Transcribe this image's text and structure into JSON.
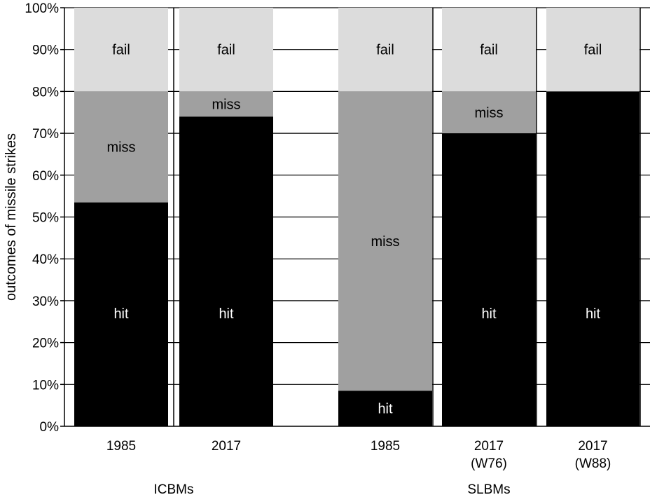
{
  "chart_data": {
    "type": "bar",
    "stacked": true,
    "title": "",
    "ylabel": "outcomes of missile strikes",
    "xlabel": "",
    "ylim": [
      0,
      100
    ],
    "y_ticks": [
      0,
      10,
      20,
      30,
      40,
      50,
      60,
      70,
      80,
      90,
      100
    ],
    "y_tick_labels": [
      "0%",
      "10%",
      "20%",
      "30%",
      "40%",
      "50%",
      "60%",
      "70%",
      "80%",
      "90%",
      "100%"
    ],
    "grid": "horizontal",
    "groups": [
      {
        "label": "ICBMs",
        "bars": [
          {
            "label": [
              "1985"
            ],
            "hit": 53.5,
            "miss": 26.5,
            "fail": 20
          },
          {
            "label": [
              "2017"
            ],
            "hit": 74,
            "miss": 6,
            "fail": 20
          }
        ]
      },
      {
        "label": "SLBMs",
        "bars": [
          {
            "label": [
              "1985"
            ],
            "hit": 8.5,
            "miss": 71.5,
            "fail": 20
          },
          {
            "label": [
              "2017",
              "(W76)"
            ],
            "hit": 70,
            "miss": 10,
            "fail": 20
          },
          {
            "label": [
              "2017",
              "(W88)"
            ],
            "hit": 80,
            "miss": 0,
            "fail": 20
          }
        ]
      }
    ],
    "segments": [
      {
        "key": "hit",
        "label": "hit",
        "color": "#000000",
        "text_color": "#ffffff"
      },
      {
        "key": "miss",
        "label": "miss",
        "color": "#a0a0a0",
        "text_color": "#000000"
      },
      {
        "key": "fail",
        "label": "fail",
        "color": "#dcdcdc",
        "text_color": "#000000"
      }
    ]
  }
}
